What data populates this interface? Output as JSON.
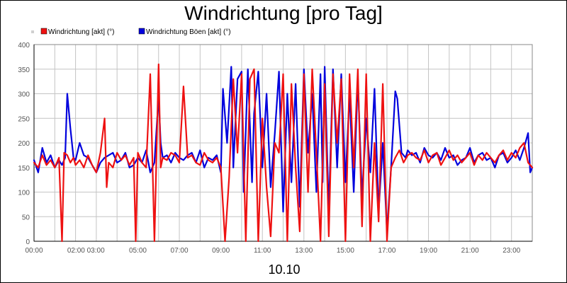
{
  "chart_data": {
    "type": "line",
    "title": "Windrichtung [pro Tag]",
    "xlabel": "10.10",
    "ylabel": "",
    "ylim": [
      0,
      400
    ],
    "yticks": [
      0,
      50,
      100,
      150,
      200,
      250,
      300,
      350,
      400
    ],
    "xlim": [
      0,
      24
    ],
    "xticks": [
      {
        "label": "00:00",
        "hour": 0
      },
      {
        "label": "02:00 03:00",
        "hour": 2.5
      },
      {
        "label": "05:00",
        "hour": 5
      },
      {
        "label": "07:00",
        "hour": 7
      },
      {
        "label": "09:00",
        "hour": 9
      },
      {
        "label": "11:00",
        "hour": 11
      },
      {
        "label": "13:00",
        "hour": 13
      },
      {
        "label": "15:00",
        "hour": 15
      },
      {
        "label": "17:00",
        "hour": 17
      },
      {
        "label": "19:00",
        "hour": 19
      },
      {
        "label": "21:00",
        "hour": 21
      },
      {
        "label": "23:00",
        "hour": 23
      }
    ],
    "grid": true,
    "legend_position": "top-left",
    "series": [
      {
        "name": "Windrichtung Böen [akt] (°)",
        "color": "#0000dd",
        "x": [
          0,
          0.2,
          0.4,
          0.6,
          0.8,
          1.0,
          1.2,
          1.35,
          1.5,
          1.6,
          1.75,
          1.9,
          2.0,
          2.2,
          2.4,
          2.6,
          2.8,
          3.0,
          3.2,
          3.4,
          3.6,
          3.8,
          4.0,
          4.2,
          4.4,
          4.6,
          4.8,
          5.0,
          5.2,
          5.4,
          5.6,
          5.8,
          6.0,
          6.1,
          6.2,
          6.4,
          6.6,
          6.8,
          7.0,
          7.2,
          7.4,
          7.6,
          7.8,
          8.0,
          8.2,
          8.4,
          8.6,
          8.8,
          9.0,
          9.1,
          9.3,
          9.5,
          9.6,
          9.8,
          10.0,
          10.1,
          10.3,
          10.5,
          10.6,
          10.8,
          11.0,
          11.2,
          11.4,
          11.6,
          11.8,
          12.0,
          12.2,
          12.4,
          12.6,
          12.8,
          13.0,
          13.2,
          13.4,
          13.6,
          13.8,
          13.9,
          14.0,
          14.2,
          14.4,
          14.6,
          14.8,
          15.0,
          15.2,
          15.4,
          15.6,
          15.8,
          16.0,
          16.2,
          16.4,
          16.6,
          16.8,
          17.0,
          17.2,
          17.4,
          17.5,
          17.7,
          17.9,
          18.0,
          18.2,
          18.4,
          18.6,
          18.8,
          19.0,
          19.2,
          19.4,
          19.6,
          19.8,
          20.0,
          20.2,
          20.4,
          20.6,
          20.8,
          21.0,
          21.2,
          21.4,
          21.6,
          21.8,
          22.0,
          22.2,
          22.4,
          22.6,
          22.8,
          23.0,
          23.2,
          23.4,
          23.6,
          23.8,
          23.9,
          24.0
        ],
        "y": [
          165,
          140,
          190,
          160,
          175,
          150,
          165,
          155,
          170,
          300,
          230,
          170,
          165,
          200,
          175,
          170,
          155,
          140,
          160,
          170,
          175,
          180,
          160,
          165,
          180,
          150,
          155,
          170,
          160,
          185,
          140,
          160,
          295,
          200,
          170,
          175,
          160,
          180,
          170,
          165,
          175,
          180,
          160,
          185,
          150,
          170,
          165,
          175,
          140,
          310,
          200,
          355,
          150,
          330,
          345,
          100,
          350,
          120,
          260,
          345,
          150,
          300,
          110,
          220,
          345,
          60,
          300,
          120,
          320,
          70,
          350,
          180,
          300,
          100,
          340,
          120,
          355,
          60,
          350,
          150,
          340,
          120,
          300,
          100,
          330,
          90,
          250,
          140,
          310,
          60,
          200,
          20,
          150,
          305,
          290,
          180,
          170,
          185,
          175,
          180,
          160,
          190,
          175,
          170,
          180,
          165,
          190,
          170,
          175,
          155,
          165,
          170,
          190,
          160,
          175,
          180,
          165,
          170,
          150,
          175,
          180,
          160,
          170,
          185,
          165,
          190,
          220,
          140,
          150
        ]
      },
      {
        "name": "Windrichtung [akt] (°)",
        "color": "#ee1111",
        "x": [
          0,
          0.2,
          0.4,
          0.6,
          0.8,
          1.0,
          1.2,
          1.35,
          1.45,
          1.6,
          1.75,
          1.9,
          2.0,
          2.2,
          2.4,
          2.6,
          2.8,
          3.0,
          3.2,
          3.4,
          3.5,
          3.6,
          3.8,
          4.0,
          4.2,
          4.4,
          4.6,
          4.8,
          4.9,
          5.0,
          5.2,
          5.4,
          5.6,
          5.8,
          6.0,
          6.1,
          6.2,
          6.4,
          6.6,
          6.8,
          7.0,
          7.2,
          7.4,
          7.6,
          7.8,
          8.0,
          8.2,
          8.4,
          8.6,
          8.8,
          9.0,
          9.2,
          9.4,
          9.6,
          9.8,
          10.0,
          10.2,
          10.4,
          10.6,
          10.8,
          11.0,
          11.2,
          11.4,
          11.6,
          11.8,
          12.0,
          12.2,
          12.4,
          12.6,
          12.8,
          13.0,
          13.2,
          13.4,
          13.6,
          13.8,
          14.0,
          14.2,
          14.4,
          14.6,
          14.8,
          15.0,
          15.2,
          15.4,
          15.6,
          15.8,
          16.0,
          16.2,
          16.4,
          16.6,
          16.8,
          17.0,
          17.2,
          17.4,
          17.6,
          17.8,
          18.0,
          18.2,
          18.4,
          18.6,
          18.8,
          19.0,
          19.2,
          19.4,
          19.6,
          19.8,
          20.0,
          20.2,
          20.4,
          20.6,
          20.8,
          21.0,
          21.2,
          21.4,
          21.6,
          21.8,
          22.0,
          22.2,
          22.4,
          22.6,
          22.8,
          23.0,
          23.2,
          23.4,
          23.6,
          23.8,
          23.9,
          24.0
        ],
        "y": [
          160,
          150,
          175,
          155,
          165,
          150,
          170,
          0,
          180,
          175,
          160,
          170,
          155,
          165,
          150,
          175,
          155,
          140,
          180,
          250,
          110,
          160,
          150,
          180,
          165,
          175,
          155,
          170,
          0,
          180,
          160,
          150,
          340,
          0,
          360,
          150,
          170,
          165,
          180,
          175,
          160,
          315,
          170,
          175,
          160,
          155,
          180,
          165,
          160,
          170,
          150,
          0,
          130,
          330,
          180,
          340,
          0,
          330,
          350,
          0,
          250,
          110,
          10,
          200,
          180,
          340,
          0,
          320,
          150,
          20,
          340,
          100,
          350,
          180,
          0,
          320,
          10,
          340,
          200,
          330,
          0,
          340,
          150,
          350,
          30,
          340,
          0,
          200,
          40,
          320,
          0,
          150,
          170,
          185,
          160,
          175,
          180,
          170,
          165,
          185,
          160,
          175,
          180,
          155,
          170,
          185,
          165,
          175,
          160,
          170,
          180,
          155,
          175,
          165,
          180,
          170,
          160,
          175,
          185,
          165,
          180,
          170,
          190,
          200,
          160,
          155,
          150
        ]
      }
    ]
  }
}
